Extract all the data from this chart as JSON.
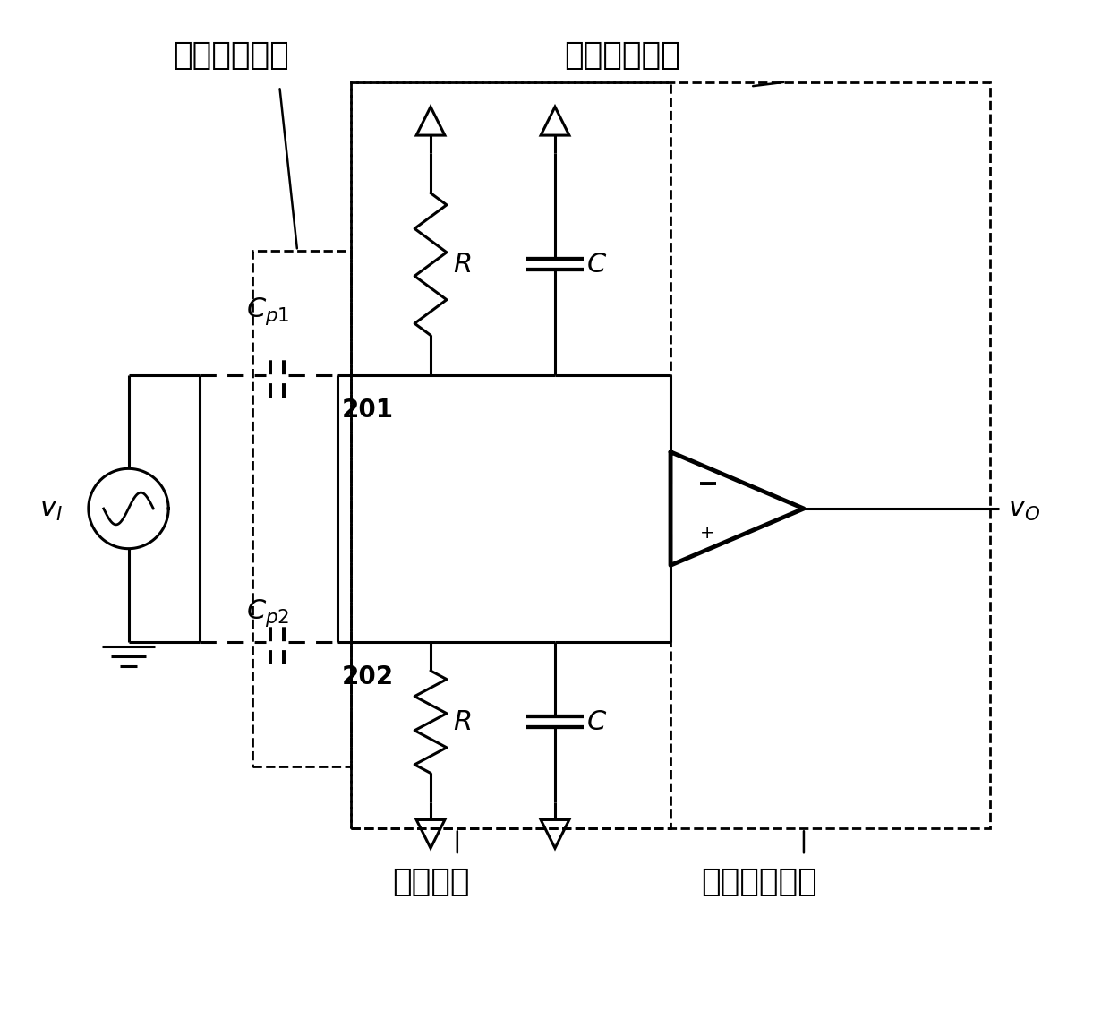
{
  "title_left": "差分探测模块",
  "title_right": "信号处理模块",
  "label_topo": "拓扑单元",
  "label_diff_amp": "差分放大单元",
  "label_cp1": "$C_{p1}$",
  "label_cp2": "$C_{p2}$",
  "label_R": "$R$",
  "label_C": "$C$",
  "label_vI": "$v_I$",
  "label_vO": "$v_O$",
  "label_201": "201",
  "label_202": "202",
  "bg_color": "#ffffff",
  "line_color": "#000000"
}
